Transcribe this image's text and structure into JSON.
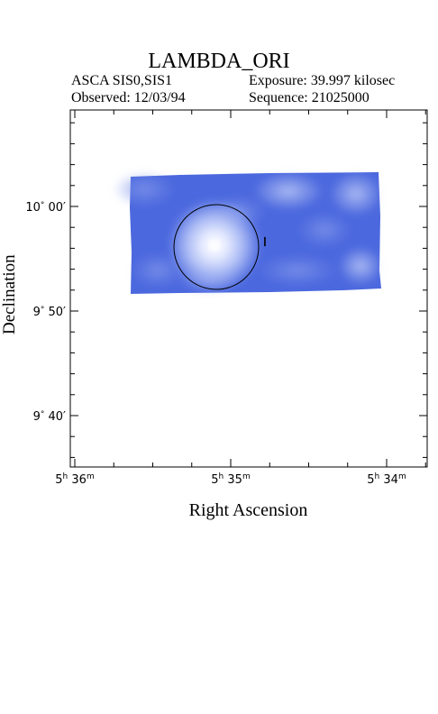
{
  "header": {
    "title": "LAMBDA_ORI",
    "instrument": "ASCA SIS0,SIS1",
    "observed": "Observed: 12/03/94",
    "exposure": "Exposure: 39.997 kilosec",
    "sequence": "Sequence: 21025000"
  },
  "axes": {
    "xlabel": "Right Ascension",
    "ylabel": "Declination",
    "x_ticks": [
      {
        "h": "5",
        "m": "36"
      },
      {
        "h": "5",
        "m": "35"
      },
      {
        "h": "5",
        "m": "34"
      }
    ],
    "y_ticks": [
      {
        "deg": "10",
        "min": "00"
      },
      {
        "deg": "9",
        "min": "50"
      },
      {
        "deg": "9",
        "min": "40"
      }
    ]
  },
  "marker_label": "I",
  "colors": {
    "image_base": "#4466dd",
    "image_light": "#c8d4ff",
    "frame": "#000000"
  }
}
